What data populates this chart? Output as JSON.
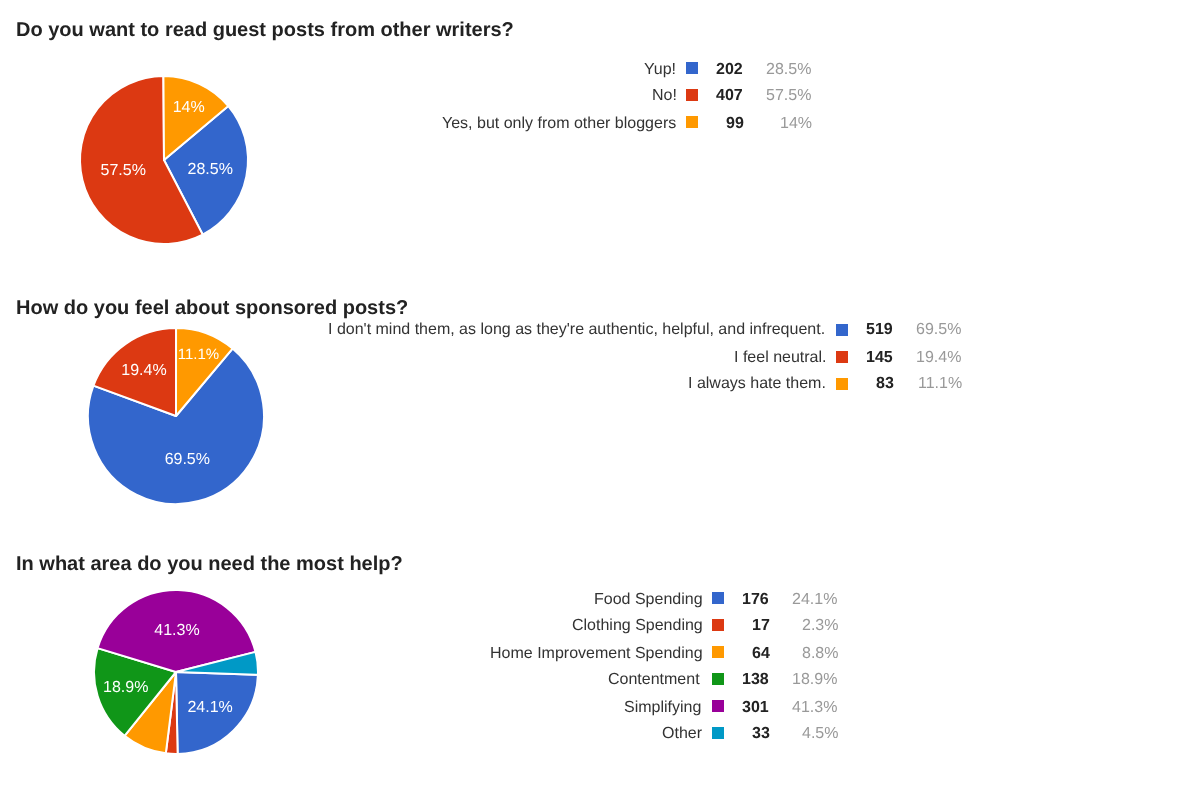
{
  "chart_data": [
    {
      "type": "pie",
      "title": "Do you want to read guest posts from other writers?",
      "categories": [
        "Yup!",
        "No!",
        "Yes, but only from other bloggers"
      ],
      "values": [
        28.5,
        57.5,
        14
      ],
      "colors": [
        "#3366cc",
        "#dc3912",
        "#ff9900"
      ],
      "value_labels": [
        "28.5%",
        "57.5%",
        "14%"
      ],
      "legend": "right",
      "annotations": [
        "202",
        "28.5%",
        "407",
        "57.5%",
        "99",
        "14%"
      ]
    },
    {
      "type": "pie",
      "title": "How do you feel about sponsored posts?",
      "categories": [
        "I don't mind them, as long as they're authentic, helpful, and infrequent.",
        "I feel neutral.",
        "I always hate them."
      ],
      "values": [
        69.5,
        19.4,
        11.1
      ],
      "colors": [
        "#3366cc",
        "#dc3912",
        "#ff9900"
      ],
      "value_labels": [
        "69.5%",
        "19.4%",
        "11.1%"
      ],
      "legend": "right",
      "annotations": [
        "519",
        "69.5%",
        "145",
        "19.4%",
        "83",
        "11.1%"
      ]
    },
    {
      "type": "pie",
      "title": "In what area do you need the most help?",
      "categories": [
        "Food Spending",
        "Clothing Spending",
        "Home Improvement Spending",
        "Contentment",
        "Simplifying",
        "Other"
      ],
      "values": [
        24.1,
        2.3,
        8.8,
        18.9,
        41.3,
        4.5
      ],
      "colors": [
        "#3366cc",
        "#dc3912",
        "#ff9900",
        "#109618",
        "#990099",
        "#0099c6"
      ],
      "value_labels": [
        "24.1%",
        null,
        null,
        "18.9%",
        "41.3%",
        null
      ],
      "legend": "right",
      "annotations": [
        "176",
        "24.1%",
        "17",
        "2.3%",
        "64",
        "8.8%",
        "138",
        "18.9%",
        "301",
        "41.3%",
        "33",
        "4.5%"
      ]
    }
  ]
}
